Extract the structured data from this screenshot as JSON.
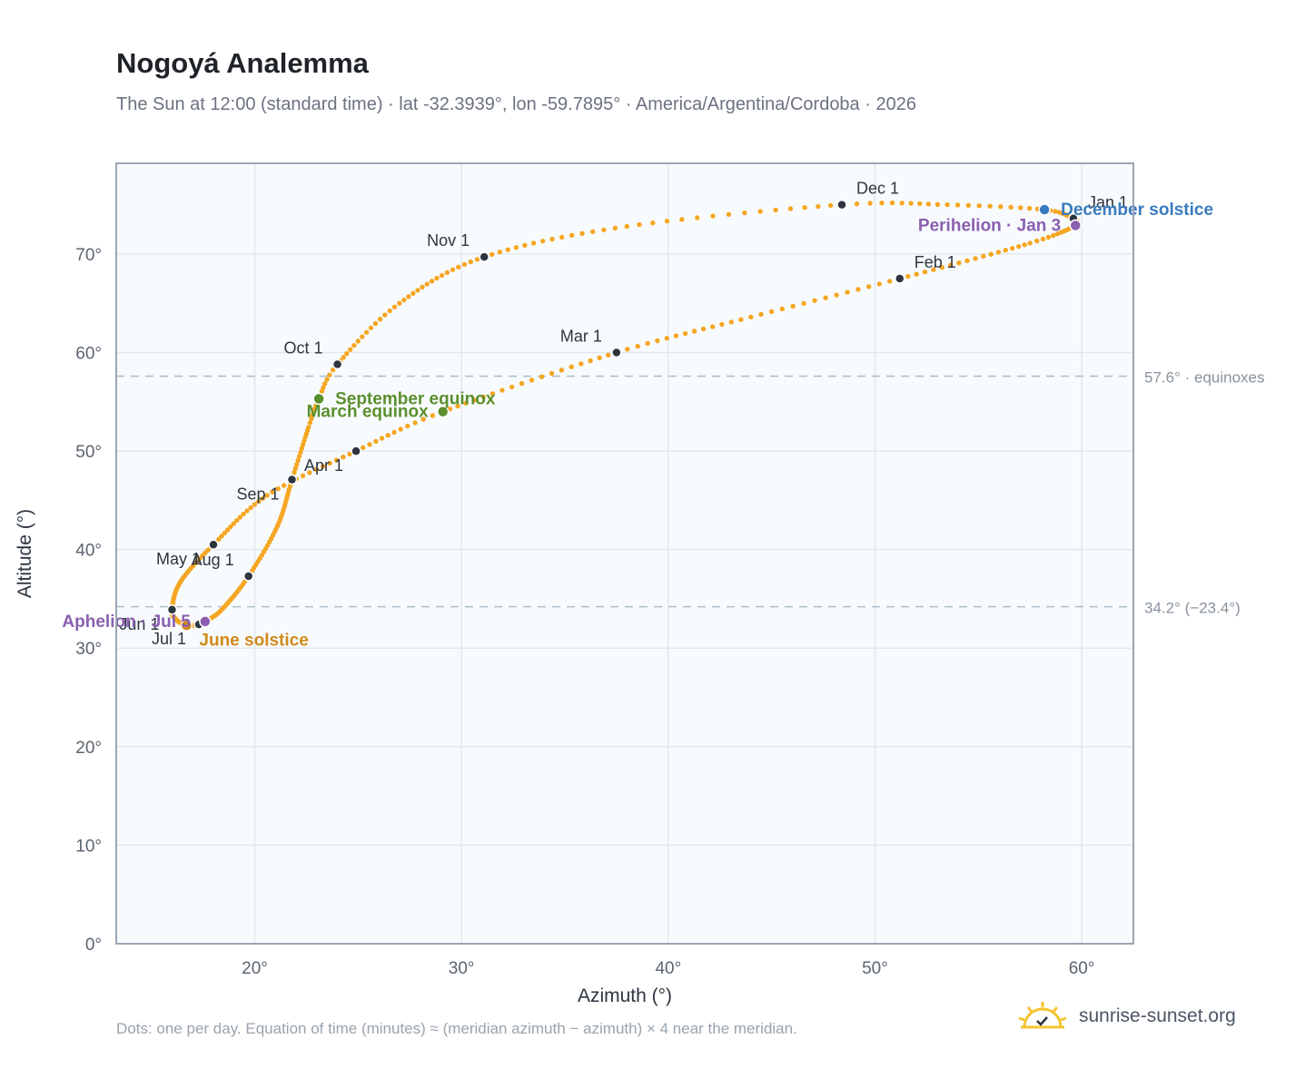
{
  "header": {
    "title": "Nogoyá Analemma",
    "subtitle": "The Sun at 12:00 (standard time) · lat -32.3939°, lon -59.7895° · America/Argentina/Cordoba · 2026"
  },
  "footer": {
    "note": "Dots: one per day. Equation of time (minutes) ≈ (meridian azimuth − azimuth) × 4 near the meridian.",
    "brand": "sunrise-sunset.org"
  },
  "colors": {
    "curve": "#f5a623",
    "month_marker": "#2d3540",
    "equinox": "#5b8f2e",
    "june_solstice": "#d08a1a",
    "december_solstice": "#3a7bbf",
    "apsis": "#8a5fb0",
    "plot_bg": "#f8fbfd",
    "grid": "#e3e8ee",
    "frame": "#9aa6b4",
    "ref_line": "#aebfcb"
  },
  "chart_data": {
    "type": "scatter",
    "xlabel": "Azimuth (°)",
    "ylabel": "Altitude (°)",
    "xlim": [
      13.3,
      62.5
    ],
    "ylim": [
      0,
      79.2
    ],
    "xticks": [
      20,
      30,
      40,
      50,
      60
    ],
    "yticks": [
      0,
      10,
      20,
      30,
      40,
      50,
      60,
      70
    ],
    "xtick_labels": [
      "20°",
      "30°",
      "40°",
      "50°",
      "60°"
    ],
    "ytick_labels": [
      "0°",
      "10°",
      "20°",
      "30°",
      "40°",
      "50°",
      "60°",
      "70°"
    ],
    "grid": true,
    "reference_lines": [
      {
        "y": 57.6,
        "label": "57.6° · equinoxes"
      },
      {
        "y": 34.2,
        "label": "34.2° (−23.4°)"
      }
    ],
    "daily_path_anchors": [
      {
        "day": 1,
        "az": 59.6,
        "alt": 73.6
      },
      {
        "day": 3,
        "az": 59.7,
        "alt": 72.9
      },
      {
        "day": 15,
        "az": 57.5,
        "alt": 71.1
      },
      {
        "day": 32,
        "az": 51.2,
        "alt": 67.5
      },
      {
        "day": 46,
        "az": 44.0,
        "alt": 63.6
      },
      {
        "day": 60,
        "az": 37.5,
        "alt": 60.0
      },
      {
        "day": 79,
        "az": 29.1,
        "alt": 54.0
      },
      {
        "day": 91,
        "az": 24.9,
        "alt": 50.0
      },
      {
        "day": 105,
        "az": 20.6,
        "alt": 45.5
      },
      {
        "day": 121,
        "az": 18.0,
        "alt": 40.5
      },
      {
        "day": 136,
        "az": 16.4,
        "alt": 36.7
      },
      {
        "day": 152,
        "az": 16.0,
        "alt": 33.9
      },
      {
        "day": 162,
        "az": 16.2,
        "alt": 32.9
      },
      {
        "day": 172,
        "az": 16.7,
        "alt": 32.3
      },
      {
        "day": 182,
        "az": 17.3,
        "alt": 32.4
      },
      {
        "day": 186,
        "az": 17.6,
        "alt": 32.7
      },
      {
        "day": 198,
        "az": 18.4,
        "alt": 33.9
      },
      {
        "day": 213,
        "az": 19.7,
        "alt": 37.3
      },
      {
        "day": 229,
        "az": 21.1,
        "alt": 42.4
      },
      {
        "day": 244,
        "az": 21.8,
        "alt": 47.1
      },
      {
        "day": 258,
        "az": 22.6,
        "alt": 52.4
      },
      {
        "day": 266,
        "az": 23.1,
        "alt": 55.3
      },
      {
        "day": 274,
        "az": 24.0,
        "alt": 58.8
      },
      {
        "day": 289,
        "az": 27.0,
        "alt": 65.0
      },
      {
        "day": 305,
        "az": 31.1,
        "alt": 69.7
      },
      {
        "day": 320,
        "az": 38.0,
        "alt": 72.8
      },
      {
        "day": 335,
        "az": 48.4,
        "alt": 75.0
      },
      {
        "day": 345,
        "az": 53.5,
        "alt": 75.0
      },
      {
        "day": 355,
        "az": 58.2,
        "alt": 74.5
      },
      {
        "day": 365,
        "az": 59.6,
        "alt": 73.6
      }
    ],
    "month_markers": [
      {
        "label": "Jan 1",
        "az": 59.6,
        "alt": 73.6,
        "pos": "above-right"
      },
      {
        "label": "Feb 1",
        "az": 51.2,
        "alt": 67.5,
        "pos": "above-right"
      },
      {
        "label": "Mar 1",
        "az": 37.5,
        "alt": 60.0,
        "pos": "above-left"
      },
      {
        "label": "Apr 1",
        "az": 24.9,
        "alt": 50.0,
        "pos": "below-left"
      },
      {
        "label": "May 1",
        "az": 18.0,
        "alt": 40.5,
        "pos": "below-left"
      },
      {
        "label": "Jun 1",
        "az": 16.0,
        "alt": 33.9,
        "pos": "below-left"
      },
      {
        "label": "Jul 1",
        "az": 17.3,
        "alt": 32.4,
        "pos": "below-left"
      },
      {
        "label": "Aug 1",
        "az": 19.7,
        "alt": 37.3,
        "pos": "above-left"
      },
      {
        "label": "Sep 1",
        "az": 21.8,
        "alt": 47.1,
        "pos": "below-left"
      },
      {
        "label": "Oct 1",
        "az": 24.0,
        "alt": 58.8,
        "pos": "above-left"
      },
      {
        "label": "Nov 1",
        "az": 31.1,
        "alt": 69.7,
        "pos": "above-left"
      },
      {
        "label": "Dec 1",
        "az": 48.4,
        "alt": 75.0,
        "pos": "above-right"
      }
    ],
    "events": [
      {
        "label": "March equinox",
        "az": 29.1,
        "alt": 54.0,
        "color_key": "equinox",
        "pos": "left"
      },
      {
        "label": "September equinox",
        "az": 23.1,
        "alt": 55.3,
        "color_key": "equinox",
        "pos": "right"
      },
      {
        "label": "June solstice",
        "az": 16.7,
        "alt": 32.3,
        "color_key": "june_solstice",
        "pos": "below-right"
      },
      {
        "label": "December solstice",
        "az": 58.2,
        "alt": 74.5,
        "color_key": "december_solstice",
        "pos": "right"
      },
      {
        "label": "Perihelion · Jan 3",
        "az": 59.7,
        "alt": 72.9,
        "color_key": "apsis",
        "pos": "left"
      },
      {
        "label": "Aphelion · Jul 5",
        "az": 17.6,
        "alt": 32.7,
        "color_key": "apsis",
        "pos": "left"
      }
    ]
  }
}
